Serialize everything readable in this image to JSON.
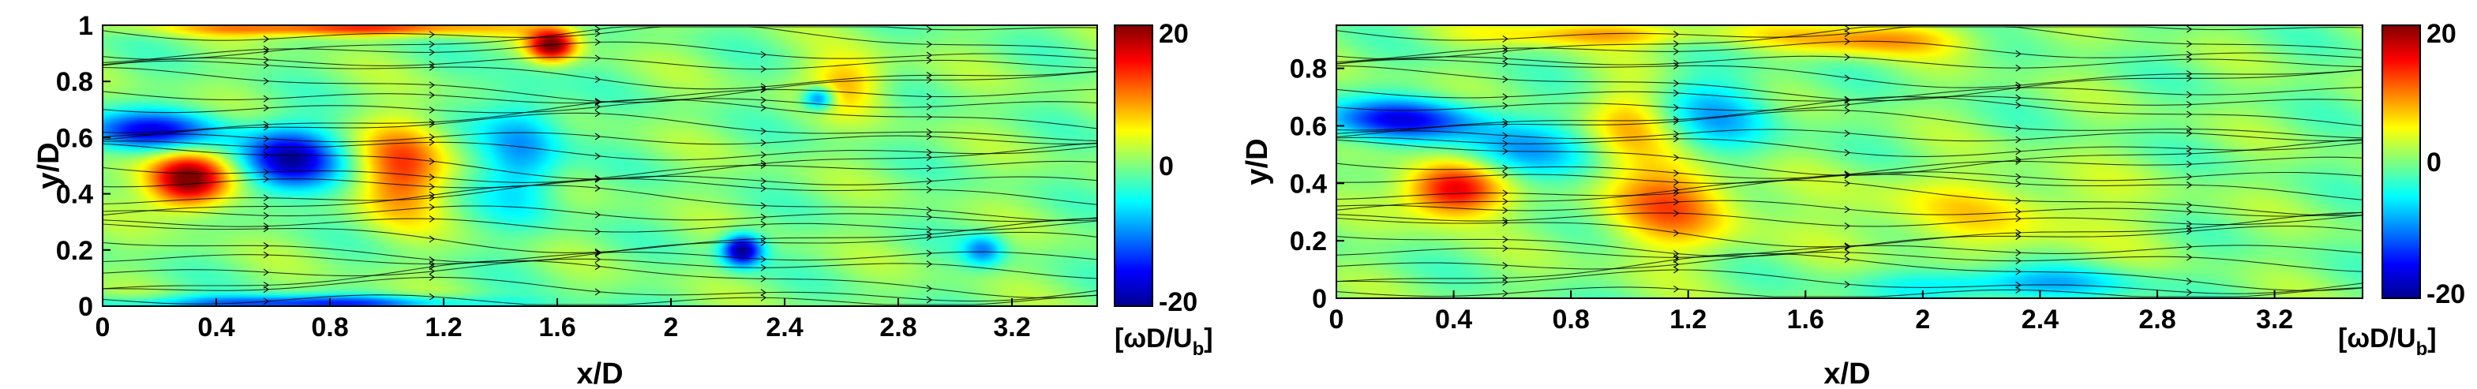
{
  "chart_data": [
    {
      "type": "heatmap",
      "title": "",
      "xlabel": "x/D",
      "ylabel": "y/D",
      "xlim": [
        0,
        3.5
      ],
      "ylim": [
        0,
        1
      ],
      "x_ticks": [
        "0",
        "0.4",
        "0.8",
        "1.2",
        "1.6",
        "2",
        "2.4",
        "2.8",
        "3.2"
      ],
      "y_ticks": [
        "0",
        "0.2",
        "0.4",
        "0.6",
        "0.8",
        "1"
      ],
      "overlay": "streamlines",
      "colorbar": {
        "min": -20,
        "max": 20,
        "ticks": [
          "20",
          "0",
          "-20"
        ],
        "label_main": "[ωD/U",
        "label_sub": "b",
        "label_end": "]"
      },
      "features": [
        {
          "x": 0.3,
          "y": 0.45,
          "sigma_x": 0.1,
          "sigma_y": 0.07,
          "amp": 22
        },
        {
          "x": 0.65,
          "y": 0.52,
          "sigma_x": 0.12,
          "sigma_y": 0.08,
          "amp": -18
        },
        {
          "x": 0.15,
          "y": 0.62,
          "sigma_x": 0.18,
          "sigma_y": 0.05,
          "amp": -15
        },
        {
          "x": 1.05,
          "y": 0.48,
          "sigma_x": 0.11,
          "sigma_y": 0.12,
          "amp": 12
        },
        {
          "x": 1.48,
          "y": 0.55,
          "sigma_x": 0.1,
          "sigma_y": 0.16,
          "amp": -9
        },
        {
          "x": 1.58,
          "y": 0.93,
          "sigma_x": 0.06,
          "sigma_y": 0.04,
          "amp": 20
        },
        {
          "x": 2.25,
          "y": 0.2,
          "sigma_x": 0.05,
          "sigma_y": 0.04,
          "amp": -20
        },
        {
          "x": 2.52,
          "y": 0.74,
          "sigma_x": 0.04,
          "sigma_y": 0.03,
          "amp": -14
        },
        {
          "x": 2.62,
          "y": 0.8,
          "sigma_x": 0.1,
          "sigma_y": 0.07,
          "amp": 8
        },
        {
          "x": 3.1,
          "y": 0.2,
          "sigma_x": 0.05,
          "sigma_y": 0.04,
          "amp": -9
        },
        {
          "x": 0.85,
          "y": 0.99,
          "sigma_x": 0.4,
          "sigma_y": 0.02,
          "amp": 14
        },
        {
          "x": 0.7,
          "y": 0.01,
          "sigma_x": 0.45,
          "sigma_y": 0.02,
          "amp": -13
        }
      ]
    },
    {
      "type": "heatmap",
      "title": "",
      "xlabel": "x/D",
      "ylabel": "y/D",
      "xlim": [
        0,
        3.5
      ],
      "ylim": [
        0,
        0.95
      ],
      "x_ticks": [
        "0",
        "0.4",
        "0.8",
        "1.2",
        "1.6",
        "2",
        "2.4",
        "2.8",
        "3.2"
      ],
      "y_ticks": [
        "0",
        "0.2",
        "0.4",
        "0.6",
        "0.8"
      ],
      "overlay": "streamlines",
      "colorbar": {
        "min": -20,
        "max": 20,
        "ticks": [
          "20",
          "0",
          "-20"
        ],
        "label_main": "[ωD/U",
        "label_sub": "b",
        "label_end": "]"
      },
      "features": [
        {
          "x": 0.4,
          "y": 0.38,
          "sigma_x": 0.12,
          "sigma_y": 0.07,
          "amp": 18
        },
        {
          "x": 0.2,
          "y": 0.62,
          "sigma_x": 0.2,
          "sigma_y": 0.05,
          "amp": -14
        },
        {
          "x": 0.6,
          "y": 0.5,
          "sigma_x": 0.15,
          "sigma_y": 0.08,
          "amp": -9
        },
        {
          "x": 1.15,
          "y": 0.34,
          "sigma_x": 0.16,
          "sigma_y": 0.12,
          "amp": 11
        },
        {
          "x": 1.3,
          "y": 0.62,
          "sigma_x": 0.14,
          "sigma_y": 0.12,
          "amp": -7
        },
        {
          "x": 1.0,
          "y": 0.62,
          "sigma_x": 0.1,
          "sigma_y": 0.1,
          "amp": 6
        },
        {
          "x": 2.2,
          "y": 0.3,
          "sigma_x": 0.35,
          "sigma_y": 0.1,
          "amp": 5
        },
        {
          "x": 2.3,
          "y": 0.05,
          "sigma_x": 0.3,
          "sigma_y": 0.04,
          "amp": -8
        },
        {
          "x": 1.8,
          "y": 0.9,
          "sigma_x": 0.25,
          "sigma_y": 0.04,
          "amp": 9
        },
        {
          "x": 0.9,
          "y": 0.92,
          "sigma_x": 0.3,
          "sigma_y": 0.03,
          "amp": 8
        }
      ]
    }
  ]
}
